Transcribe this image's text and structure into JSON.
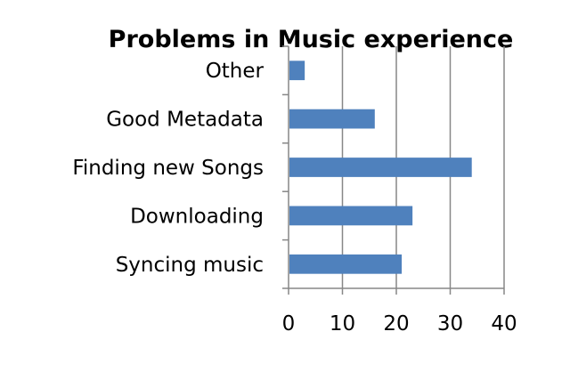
{
  "chart_data": {
    "type": "bar",
    "orientation": "horizontal",
    "title": "Problems in Music experience",
    "categories": [
      "Other",
      "Good Metadata",
      "Finding new Songs",
      "Downloading",
      "Syncing music"
    ],
    "values": [
      3,
      16,
      34,
      23,
      21
    ],
    "xlim": [
      0,
      40
    ],
    "xticks": [
      "0",
      "10",
      "20",
      "30",
      "40"
    ],
    "xlabel": "",
    "ylabel": "",
    "grid": "vertical",
    "legend": "none",
    "colors": {
      "bar": "#4f81bd",
      "grid": "#878787",
      "axis": "#878787"
    }
  }
}
